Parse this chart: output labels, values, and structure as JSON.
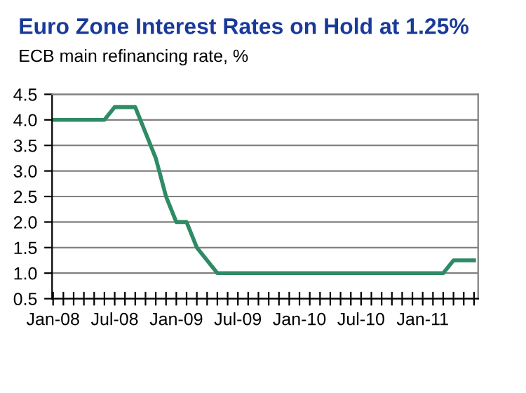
{
  "chart_data": {
    "type": "line",
    "title": "Euro Zone Interest Rates on Hold at 1.25%",
    "subtitle": "ECB main refinancing rate, %",
    "categories": [
      "Jan-08",
      null,
      null,
      null,
      null,
      null,
      "Jul-08",
      null,
      null,
      null,
      null,
      null,
      "Jan-09",
      null,
      null,
      null,
      null,
      null,
      "Jul-09",
      null,
      null,
      null,
      null,
      null,
      "Jan-10",
      null,
      null,
      null,
      null,
      null,
      "Jul-10",
      null,
      null,
      null,
      null,
      null,
      "Jan-11",
      null,
      null,
      null,
      null,
      null
    ],
    "series": [
      {
        "color": "#2e8b66",
        "values": [
          4.0,
          4.0,
          4.0,
          4.0,
          4.0,
          4.0,
          4.25,
          4.25,
          4.25,
          3.75,
          3.25,
          2.5,
          2.0,
          2.0,
          1.5,
          1.25,
          1.0,
          1.0,
          1.0,
          1.0,
          1.0,
          1.0,
          1.0,
          1.0,
          1.0,
          1.0,
          1.0,
          1.0,
          1.0,
          1.0,
          1.0,
          1.0,
          1.0,
          1.0,
          1.0,
          1.0,
          1.0,
          1.0,
          1.0,
          1.25,
          1.25,
          1.25
        ]
      }
    ],
    "ylim": [
      0.5,
      4.5
    ],
    "yticks": [
      {
        "value": 0.5,
        "label": "0.5"
      },
      {
        "value": 1,
        "label": "1.0"
      },
      {
        "value": 1.5,
        "label": "1.5"
      },
      {
        "value": 2,
        "label": "2.0"
      },
      {
        "value": 2.5,
        "label": "2.5"
      },
      {
        "value": 3,
        "label": "3.0"
      },
      {
        "value": 3.5,
        "label": "3.5"
      },
      {
        "value": 4,
        "label": "4.0"
      },
      {
        "value": 4.5,
        "label": "4.5"
      }
    ],
    "grid": "y",
    "legend": false
  }
}
